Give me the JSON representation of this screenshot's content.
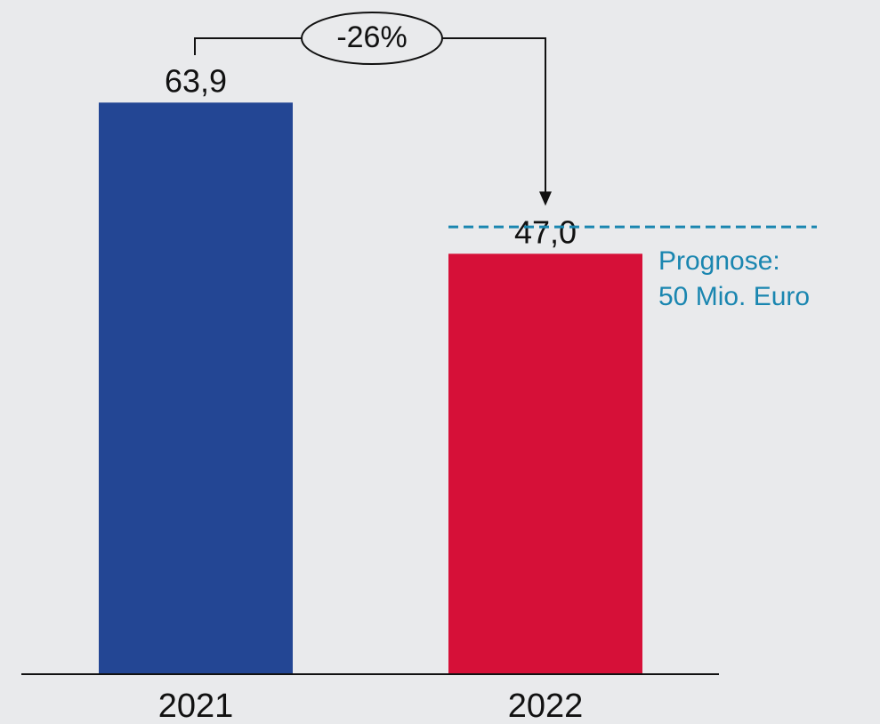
{
  "colors": {
    "background": "#e9eaec",
    "axis": "#111111",
    "text": "#111111",
    "forecast": "#1a86b0"
  },
  "chart_data": {
    "type": "bar",
    "categories": [
      "2021",
      "2022"
    ],
    "values": [
      63.9,
      47.0
    ],
    "value_labels": [
      "63,9",
      "47,0"
    ],
    "bar_colors": [
      "#234694",
      "#d61038"
    ],
    "ylim": [
      0,
      70
    ],
    "grid": false,
    "title": "",
    "xlabel": "",
    "ylabel": "",
    "annotations": {
      "change": "-26%",
      "forecast": {
        "value": 50,
        "line1": "Prognose:",
        "line2": "50 Mio. Euro"
      }
    }
  }
}
